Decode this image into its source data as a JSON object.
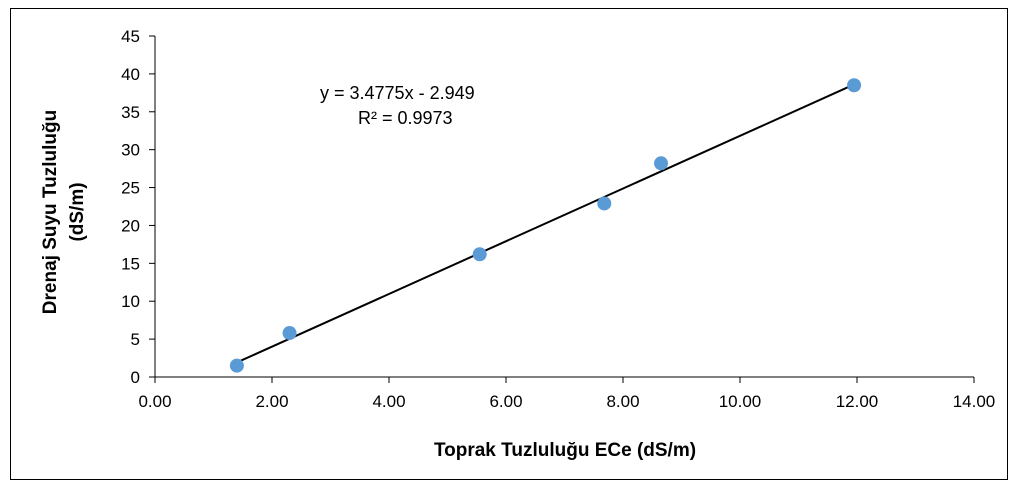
{
  "chart_data": {
    "type": "scatter",
    "title": "",
    "xlabel": "Toprak Tuzluluğu ECe (dS/m)",
    "ylabel_lines": [
      "Drenaj Suyu Tuzluluğu",
      "(dS/m)"
    ],
    "xlim": [
      0,
      14
    ],
    "ylim": [
      0,
      45
    ],
    "x_ticks": [
      "0.00",
      "2.00",
      "4.00",
      "6.00",
      "8.00",
      "10.00",
      "12.00",
      "14.00"
    ],
    "y_ticks": [
      "0",
      "5",
      "10",
      "15",
      "20",
      "25",
      "30",
      "35",
      "40",
      "45"
    ],
    "grid": false,
    "legend": "none",
    "series": [
      {
        "x": [
          1.4,
          2.3,
          5.55,
          7.68,
          8.65,
          11.95
        ],
        "y": [
          1.5,
          5.8,
          16.2,
          22.9,
          28.2,
          38.5
        ],
        "color": "#5b9bd5"
      }
    ],
    "trendline": {
      "type": "linear",
      "slope": 3.4775,
      "intercept": -2.949,
      "x_range": [
        1.4,
        11.95
      ],
      "color": "#000000",
      "equation_text": "y = 3.4775x - 2.949",
      "r2_text": "R² = 0.9973"
    }
  }
}
